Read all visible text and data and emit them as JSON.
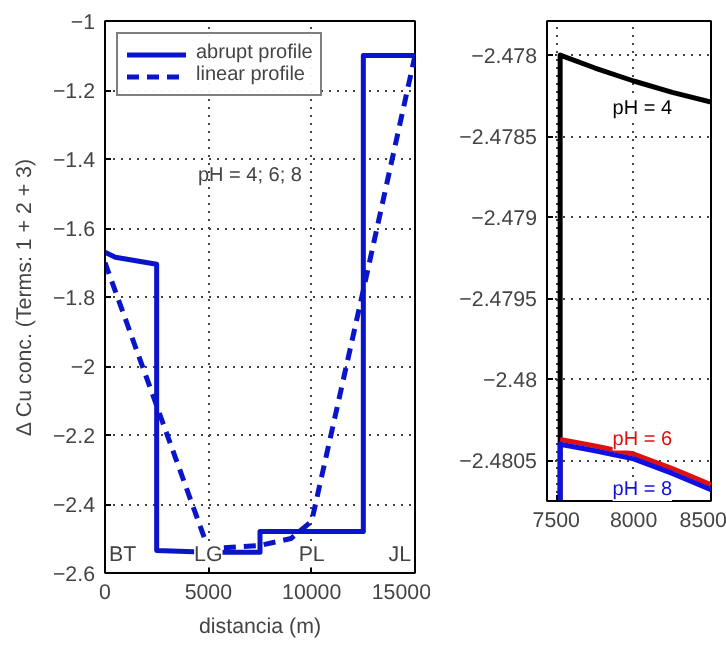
{
  "chart_data": [
    {
      "type": "line",
      "xlabel": "distancia (m)",
      "ylabel": "Δ Cu conc. (Terms: 1 + 2 + 3)",
      "xlim": [
        0,
        15000
      ],
      "ylim": [
        -2.6,
        -1
      ],
      "xticks": [
        0,
        5000,
        10000,
        15000
      ],
      "yticks": [
        -2.6,
        -2.4,
        -2.2,
        -2,
        -1.8,
        -1.6,
        -1.4,
        -1.2,
        -1
      ],
      "grid": true,
      "legend": "top left",
      "series": [
        {
          "name": "abrupt profile",
          "color": "#0a14c8",
          "line_style": "solid",
          "x": [
            0,
            500,
            1000,
            1500,
            2000,
            2500,
            2500,
            5000,
            7500,
            7500,
            10000,
            12500,
            12500,
            15000
          ],
          "values": [
            -1.67,
            -1.685,
            -1.69,
            -1.695,
            -1.7,
            -1.705,
            -2.535,
            -2.54,
            -2.54,
            -2.48,
            -2.48,
            -2.48,
            -1.1,
            -1.1
          ]
        },
        {
          "name": "linear profile",
          "color": "#0a14c8",
          "line_style": "dashed",
          "x": [
            0,
            5000,
            7500,
            9000,
            10000,
            12500,
            15000
          ],
          "values": [
            -1.7,
            -2.53,
            -2.52,
            -2.5,
            -2.45,
            -1.78,
            -1.1
          ]
        }
      ],
      "annotations": [
        "pH = 4; 6; 8",
        "BT",
        "LG",
        "PL",
        "JL"
      ]
    },
    {
      "type": "line",
      "xlim": [
        7440,
        8500
      ],
      "ylim": [
        -2.48075,
        -2.47779
      ],
      "xticks": [
        7500,
        8000,
        8500
      ],
      "yticks": [
        -2.4805,
        -2.48,
        -2.4795,
        -2.479,
        -2.4785,
        -2.478
      ],
      "grid": true,
      "series": [
        {
          "name": "pH = 4",
          "color": "#000000",
          "x": [
            7525,
            7525,
            7750,
            8000,
            8250,
            8500
          ],
          "values": [
            -2.48075,
            -2.478,
            -2.47808,
            -2.47816,
            -2.47823,
            -2.47829
          ]
        },
        {
          "name": "pH = 6",
          "color": "#e01010",
          "x": [
            7525,
            7750,
            8000,
            8250,
            8500
          ],
          "values": [
            -2.48037,
            -2.48041,
            -2.48046,
            -2.48055,
            -2.48065
          ]
        },
        {
          "name": "pH = 8",
          "color": "#1010e0",
          "x": [
            7525,
            7525,
            7750,
            8000,
            8250,
            8500
          ],
          "values": [
            -2.48075,
            -2.4804,
            -2.48044,
            -2.48049,
            -2.48058,
            -2.48068
          ]
        }
      ]
    }
  ]
}
